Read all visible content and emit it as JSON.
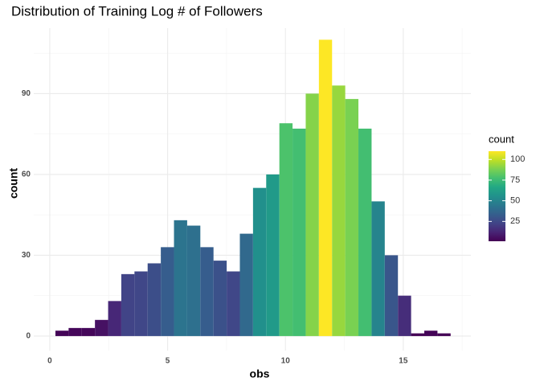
{
  "chart_data": {
    "type": "histogram",
    "title": "Distribution of Training Log # of Followers",
    "x_label": "obs",
    "y_label": "count",
    "bins": [
      0.24,
      0.799,
      1.358,
      1.917,
      2.476,
      3.035,
      3.594,
      4.153,
      4.712,
      5.271,
      5.83,
      6.389,
      6.948,
      7.507,
      8.066,
      8.625,
      9.184,
      9.743,
      10.302,
      10.861,
      11.42,
      11.979,
      12.538,
      13.097,
      13.656,
      14.215,
      14.774,
      15.333,
      15.892,
      16.451,
      17.01
    ],
    "values": [
      2,
      3,
      3,
      6,
      13,
      23,
      24,
      27,
      33,
      43,
      41,
      33,
      28,
      24,
      38,
      55,
      60,
      79,
      77,
      90,
      110,
      93,
      88,
      77,
      50,
      30,
      15,
      1,
      2,
      1
    ],
    "xlim": [
      -0.68,
      17.87
    ],
    "ylim": [
      -5.4,
      114.3
    ],
    "xticks": [
      0,
      5,
      10,
      15
    ],
    "yticks": [
      0,
      30,
      60,
      90
    ],
    "xminor": [
      2.5,
      7.5,
      12.5,
      17.5
    ],
    "yminor": [
      15,
      45,
      75,
      105
    ],
    "grid": true,
    "colorscale": "viridis",
    "legend": {
      "title": "count",
      "position": "right",
      "clim": [
        1,
        110
      ],
      "ticks": [
        25,
        50,
        75,
        100
      ]
    }
  }
}
